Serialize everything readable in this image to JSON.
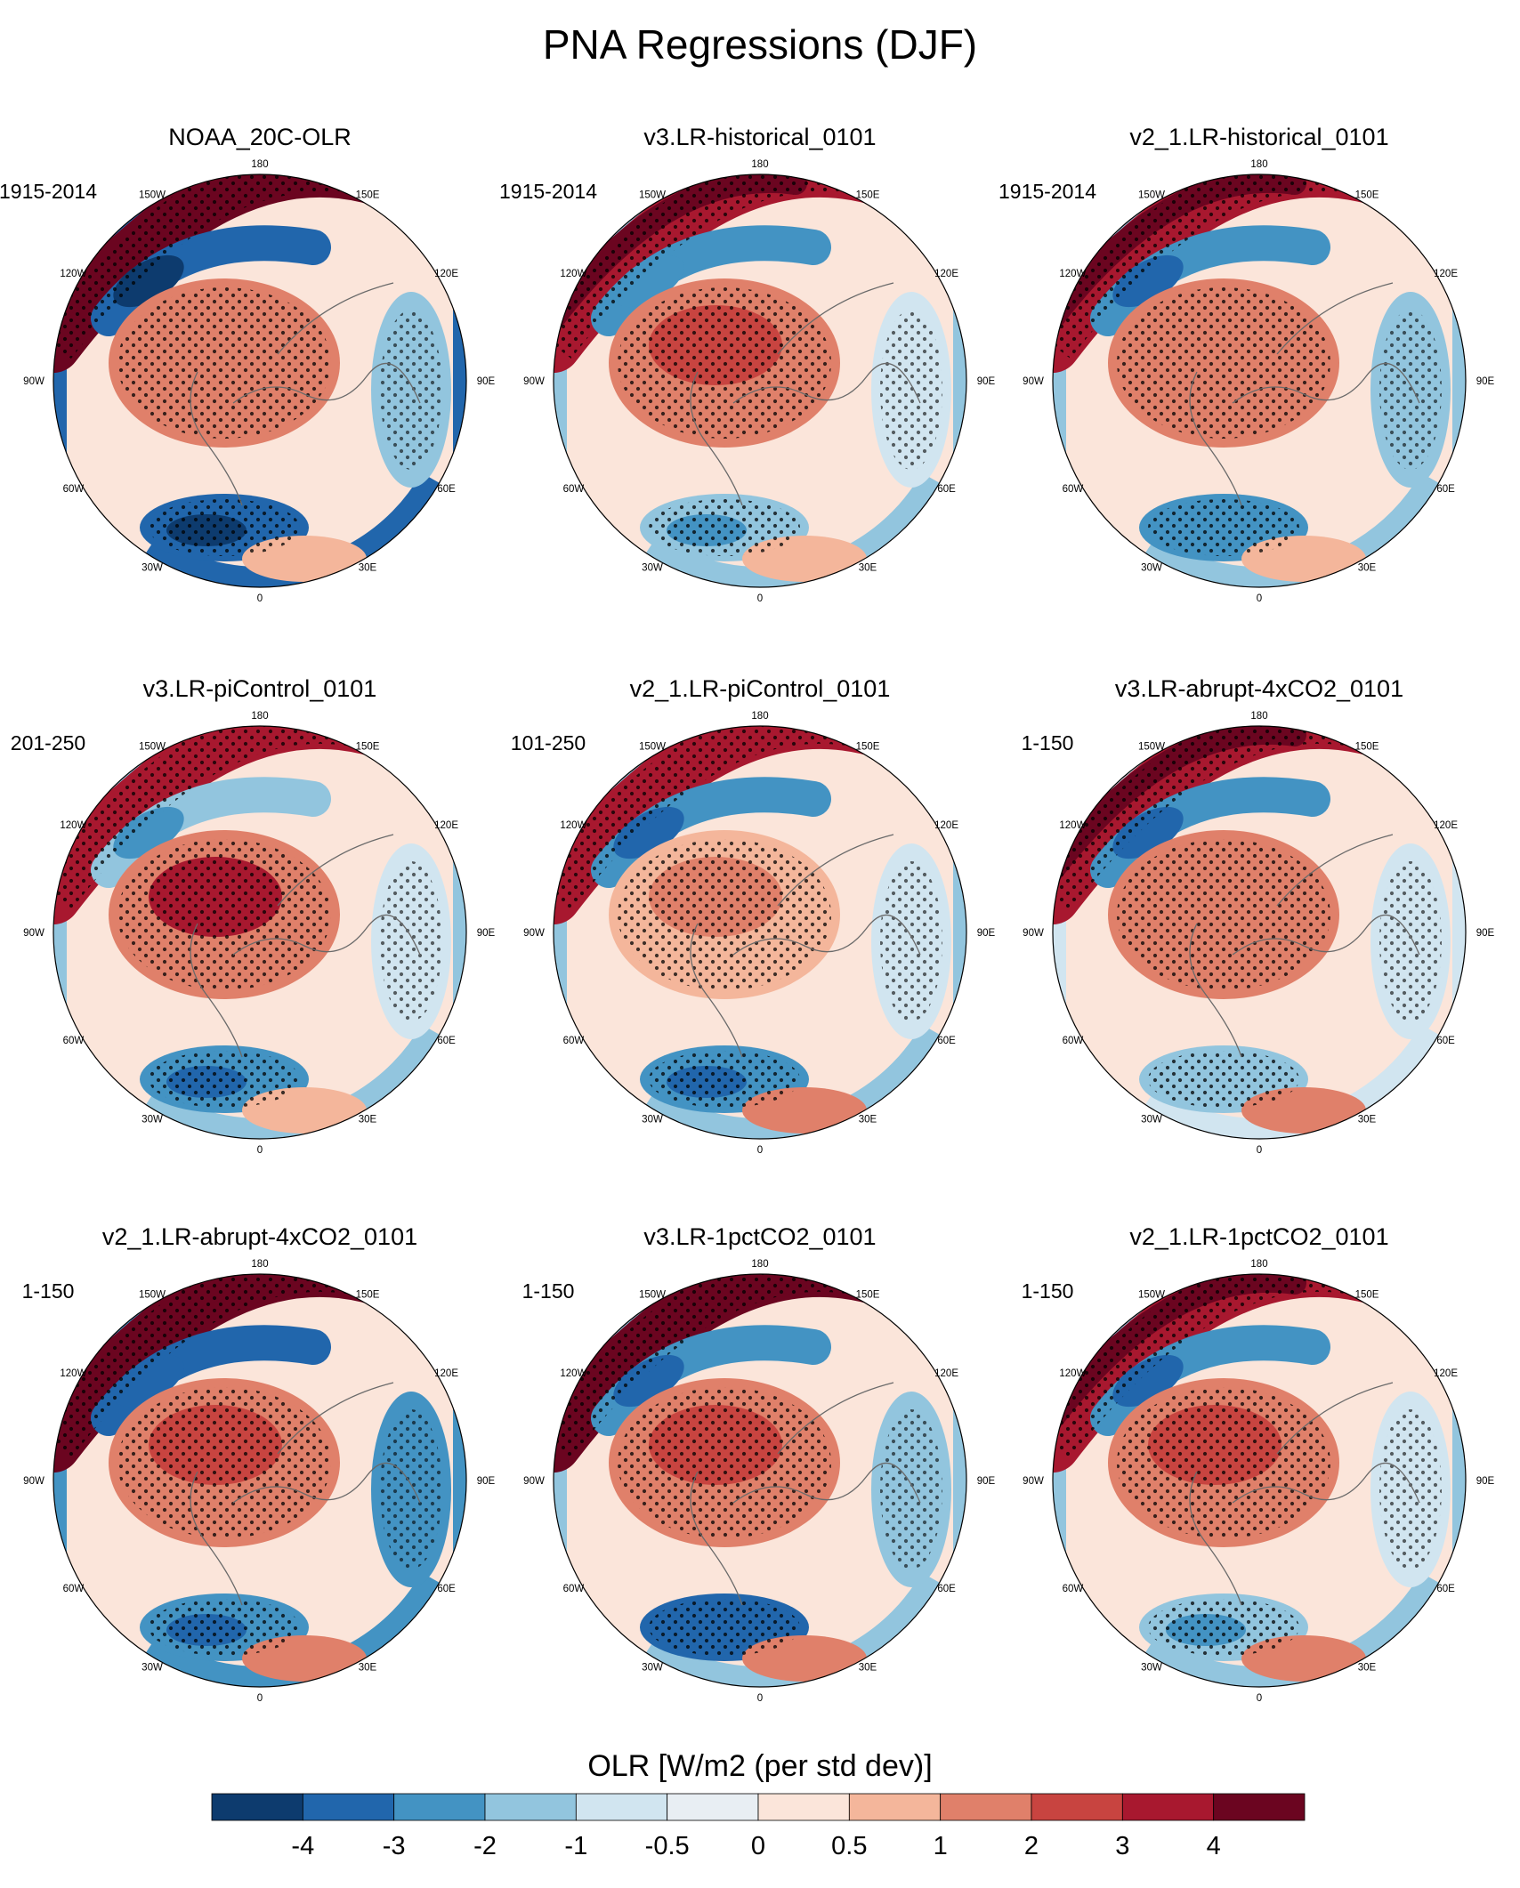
{
  "chart_data": {
    "type": "heatmap",
    "projection": "north-polar-stereographic",
    "title": "PNA Regressions (DJF)",
    "longitude_labels": [
      "180",
      "150E",
      "120E",
      "90E",
      "60E",
      "30E",
      "0",
      "30W",
      "60W",
      "90W",
      "120W",
      "150W"
    ],
    "stippling": "dots mark statistically significant regression values",
    "colorbar": {
      "title": "OLR [W/m2 (per std dev)]",
      "tick_labels": [
        "-4",
        "-3",
        "-2",
        "-1",
        "-0.5",
        "0",
        "0.5",
        "1",
        "2",
        "3",
        "4"
      ],
      "levels": [
        -4,
        -3,
        -2,
        -1,
        -0.5,
        0,
        0.5,
        1,
        2,
        3,
        4
      ],
      "colors": [
        "#0d3b6e",
        "#2166ac",
        "#4393c3",
        "#92c5de",
        "#d1e5f0",
        "#e8eef3",
        "#fbe5da",
        "#f4b69b",
        "#e0806a",
        "#c84440",
        "#a8182f",
        "#6b0520"
      ]
    },
    "panels": [
      {
        "title": "NOAA_20C-OLR",
        "period": "1915-2014"
      },
      {
        "title": "v3.LR-historical_0101",
        "period": "1915-2014"
      },
      {
        "title": "v2_1.LR-historical_0101",
        "period": "1915-2014"
      },
      {
        "title": "v3.LR-piControl_0101",
        "period": "201-250"
      },
      {
        "title": "v2_1.LR-piControl_0101",
        "period": "101-250"
      },
      {
        "title": "v3.LR-abrupt-4xCO2_0101",
        "period": "1-150"
      },
      {
        "title": "v2_1.LR-abrupt-4xCO2_0101",
        "period": "1-150"
      },
      {
        "title": "v3.LR-1pctCO2_0101",
        "period": "1-150"
      },
      {
        "title": "v2_1.LR-1pctCO2_0101",
        "period": "1-150"
      }
    ]
  }
}
